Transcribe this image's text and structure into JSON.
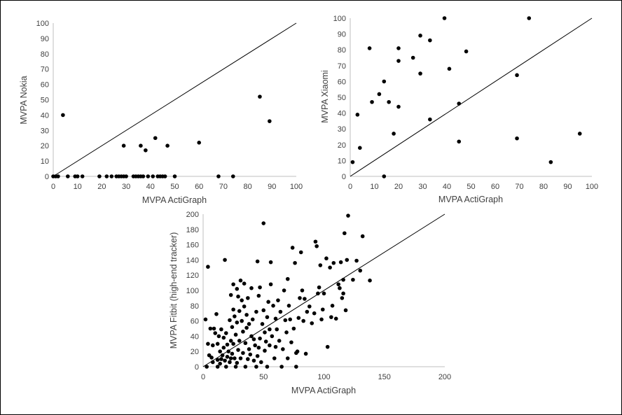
{
  "colors": {
    "axis": "#bfbfbf",
    "point": "#000000",
    "line": "#000000",
    "text": "#404040"
  },
  "chart_data": [
    {
      "type": "scatter",
      "xlabel": "MVPA ActiGraph",
      "ylabel": "MVPA Nokia",
      "xlim": [
        0,
        100
      ],
      "ylim": [
        0,
        100
      ],
      "xticks": [
        "0",
        "10",
        "20",
        "30",
        "40",
        "50",
        "60",
        "70",
        "80",
        "90",
        "100"
      ],
      "yticks": [
        "0",
        "10",
        "20",
        "30",
        "40",
        "50",
        "60",
        "70",
        "80",
        "90",
        "100"
      ],
      "identity_line": true,
      "points": [
        [
          0,
          0
        ],
        [
          1,
          0
        ],
        [
          2,
          0
        ],
        [
          4,
          40
        ],
        [
          6,
          0
        ],
        [
          9,
          0
        ],
        [
          10,
          0
        ],
        [
          12,
          0
        ],
        [
          19,
          0
        ],
        [
          22,
          0
        ],
        [
          24,
          0
        ],
        [
          26,
          0
        ],
        [
          27,
          0
        ],
        [
          28,
          0
        ],
        [
          29,
          0
        ],
        [
          29,
          20
        ],
        [
          30,
          0
        ],
        [
          33,
          0
        ],
        [
          34,
          0
        ],
        [
          35,
          0
        ],
        [
          36,
          0
        ],
        [
          36,
          20
        ],
        [
          37,
          0
        ],
        [
          38,
          17
        ],
        [
          39,
          0
        ],
        [
          41,
          0
        ],
        [
          42,
          25
        ],
        [
          43,
          0
        ],
        [
          44,
          0
        ],
        [
          45,
          0
        ],
        [
          46,
          0
        ],
        [
          47,
          20
        ],
        [
          50,
          0
        ],
        [
          60,
          22
        ],
        [
          68,
          0
        ],
        [
          74,
          0
        ],
        [
          85,
          52
        ],
        [
          89,
          36
        ]
      ]
    },
    {
      "type": "scatter",
      "xlabel": "MVPA ActiGraph",
      "ylabel": "MVPA Xiaomi",
      "xlim": [
        0,
        100
      ],
      "ylim": [
        0,
        100
      ],
      "xticks": [
        "0",
        "10",
        "20",
        "30",
        "40",
        "50",
        "60",
        "70",
        "80",
        "90",
        "100"
      ],
      "yticks": [
        "0",
        "10",
        "20",
        "30",
        "40",
        "50",
        "60",
        "70",
        "80",
        "90",
        "100"
      ],
      "identity_line": true,
      "points": [
        [
          1,
          9
        ],
        [
          3,
          39
        ],
        [
          4,
          18
        ],
        [
          8,
          81
        ],
        [
          9,
          47
        ],
        [
          12,
          52
        ],
        [
          14,
          60
        ],
        [
          14,
          0
        ],
        [
          16,
          47
        ],
        [
          18,
          27
        ],
        [
          20,
          81
        ],
        [
          20,
          73
        ],
        [
          20,
          44
        ],
        [
          26,
          75
        ],
        [
          29,
          65
        ],
        [
          29,
          89
        ],
        [
          33,
          86
        ],
        [
          33,
          36
        ],
        [
          39,
          100
        ],
        [
          41,
          68
        ],
        [
          45,
          46
        ],
        [
          45,
          22
        ],
        [
          48,
          79
        ],
        [
          69,
          24
        ],
        [
          69,
          64
        ],
        [
          74,
          100
        ],
        [
          83,
          9
        ],
        [
          95,
          27
        ]
      ]
    },
    {
      "type": "scatter",
      "xlabel": "MVPA ActiGraph",
      "ylabel": "MVPA Fitbit (high-end tracker)",
      "xlim": [
        0,
        200
      ],
      "ylim": [
        0,
        200
      ],
      "xticks": [
        "0",
        "50",
        "100",
        "150",
        "200"
      ],
      "yticks": [
        "0",
        "20",
        "40",
        "60",
        "80",
        "100",
        "120",
        "140",
        "160",
        "180",
        "200"
      ],
      "identity_line": true,
      "points": [
        [
          2,
          62
        ],
        [
          3,
          0
        ],
        [
          4,
          131
        ],
        [
          4,
          30
        ],
        [
          5,
          15
        ],
        [
          6,
          50
        ],
        [
          7,
          12
        ],
        [
          8,
          28
        ],
        [
          8,
          6
        ],
        [
          9,
          50
        ],
        [
          10,
          44
        ],
        [
          11,
          69
        ],
        [
          12,
          0
        ],
        [
          12,
          30
        ],
        [
          12,
          9
        ],
        [
          13,
          40
        ],
        [
          14,
          20
        ],
        [
          14,
          4
        ],
        [
          15,
          49
        ],
        [
          15,
          10
        ],
        [
          16,
          15
        ],
        [
          17,
          25
        ],
        [
          17,
          38
        ],
        [
          18,
          140
        ],
        [
          18,
          8
        ],
        [
          19,
          44
        ],
        [
          19,
          0
        ],
        [
          20,
          13
        ],
        [
          20,
          29
        ],
        [
          21,
          20
        ],
        [
          22,
          6
        ],
        [
          22,
          61
        ],
        [
          23,
          11
        ],
        [
          23,
          94
        ],
        [
          23,
          34
        ],
        [
          24,
          17
        ],
        [
          24,
          52
        ],
        [
          25,
          108
        ],
        [
          25,
          75
        ],
        [
          25,
          30
        ],
        [
          26,
          11
        ],
        [
          26,
          66
        ],
        [
          27,
          0
        ],
        [
          27,
          42
        ],
        [
          28,
          102
        ],
        [
          28,
          5
        ],
        [
          28,
          58
        ],
        [
          29,
          92
        ],
        [
          29,
          22
        ],
        [
          30,
          34
        ],
        [
          30,
          73
        ],
        [
          31,
          113
        ],
        [
          31,
          11
        ],
        [
          32,
          87
        ],
        [
          32,
          60
        ],
        [
          33,
          18
        ],
        [
          33,
          46
        ],
        [
          34,
          109
        ],
        [
          34,
          79
        ],
        [
          35,
          0
        ],
        [
          35,
          31
        ],
        [
          36,
          68
        ],
        [
          36,
          51
        ],
        [
          37,
          90
        ],
        [
          37,
          10
        ],
        [
          38,
          23
        ],
        [
          38,
          56
        ],
        [
          39,
          16
        ],
        [
          40,
          40
        ],
        [
          40,
          103
        ],
        [
          41,
          62
        ],
        [
          42,
          8
        ],
        [
          42,
          36
        ],
        [
          43,
          28
        ],
        [
          44,
          0
        ],
        [
          44,
          72
        ],
        [
          45,
          138
        ],
        [
          45,
          14
        ],
        [
          46,
          93
        ],
        [
          46,
          25
        ],
        [
          47,
          37
        ],
        [
          47,
          104
        ],
        [
          48,
          6
        ],
        [
          49,
          56
        ],
        [
          50,
          188
        ],
        [
          50,
          74
        ],
        [
          51,
          21
        ],
        [
          51,
          45
        ],
        [
          52,
          33
        ],
        [
          53,
          65
        ],
        [
          53,
          0
        ],
        [
          54,
          85
        ],
        [
          55,
          49
        ],
        [
          55,
          28
        ],
        [
          56,
          137
        ],
        [
          56,
          108
        ],
        [
          57,
          40
        ],
        [
          58,
          80
        ],
        [
          59,
          11
        ],
        [
          60,
          63
        ],
        [
          60,
          26
        ],
        [
          61,
          49
        ],
        [
          62,
          87
        ],
        [
          63,
          34
        ],
        [
          64,
          72
        ],
        [
          65,
          0
        ],
        [
          66,
          23
        ],
        [
          67,
          100
        ],
        [
          68,
          61
        ],
        [
          69,
          45
        ],
        [
          70,
          11
        ],
        [
          70,
          115
        ],
        [
          71,
          80
        ],
        [
          72,
          62
        ],
        [
          73,
          32
        ],
        [
          74,
          156
        ],
        [
          75,
          50
        ],
        [
          76,
          136
        ],
        [
          77,
          0
        ],
        [
          77,
          18
        ],
        [
          78,
          20
        ],
        [
          79,
          64
        ],
        [
          80,
          90
        ],
        [
          81,
          150
        ],
        [
          82,
          100
        ],
        [
          83,
          60
        ],
        [
          84,
          89
        ],
        [
          85,
          17
        ],
        [
          86,
          72
        ],
        [
          88,
          79
        ],
        [
          90,
          57
        ],
        [
          92,
          70
        ],
        [
          93,
          164
        ],
        [
          94,
          158
        ],
        [
          95,
          96
        ],
        [
          96,
          104
        ],
        [
          97,
          133
        ],
        [
          98,
          62
        ],
        [
          99,
          75
        ],
        [
          100,
          96
        ],
        [
          102,
          142
        ],
        [
          103,
          26
        ],
        [
          105,
          130
        ],
        [
          106,
          65
        ],
        [
          107,
          80
        ],
        [
          108,
          136
        ],
        [
          110,
          63
        ],
        [
          112,
          108
        ],
        [
          113,
          103
        ],
        [
          114,
          137
        ],
        [
          115,
          90
        ],
        [
          116,
          96
        ],
        [
          116,
          114
        ],
        [
          117,
          175
        ],
        [
          118,
          74
        ],
        [
          119,
          140
        ],
        [
          120,
          198
        ],
        [
          124,
          114
        ],
        [
          127,
          139
        ],
        [
          130,
          126
        ],
        [
          132,
          171
        ],
        [
          138,
          113
        ]
      ]
    }
  ]
}
